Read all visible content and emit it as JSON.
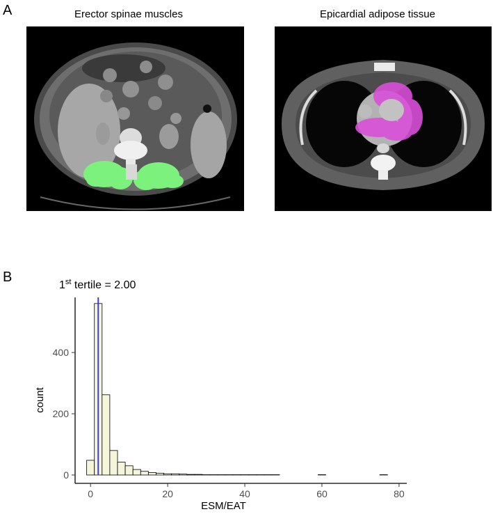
{
  "panel_a": {
    "letter": "A",
    "left_image_title": "Erector spinae muscles",
    "right_image_title": "Epicardial adipose tissue",
    "esm_highlight_color": "#7cf27c",
    "eat_highlight_color": "#d94fd9"
  },
  "panel_b": {
    "letter": "B"
  },
  "chart_data": {
    "type": "bar",
    "title": "",
    "xlabel": "ESM/EAT",
    "ylabel": "count",
    "xlim": [
      -4,
      82
    ],
    "ylim": [
      0,
      580
    ],
    "x_ticks": [
      0,
      20,
      40,
      60,
      80
    ],
    "y_ticks": [
      0,
      200,
      400
    ],
    "bin_width": 2,
    "bins_start": [
      -1,
      1,
      3,
      5,
      7,
      9,
      11,
      13,
      15,
      17,
      19,
      21,
      23,
      25,
      27,
      29,
      31,
      33,
      35,
      37,
      39,
      41,
      43,
      45,
      47,
      49,
      51,
      53,
      55,
      57,
      59,
      61,
      63,
      65,
      67,
      69,
      71,
      73,
      75,
      77
    ],
    "counts": [
      48,
      560,
      262,
      80,
      42,
      30,
      18,
      12,
      8,
      6,
      4,
      4,
      3,
      2,
      2,
      1,
      1,
      1,
      1,
      1,
      1,
      1,
      1,
      1,
      1,
      0,
      0,
      0,
      0,
      0,
      1,
      0,
      0,
      0,
      0,
      0,
      0,
      0,
      1,
      0
    ],
    "bar_fill": "#f5f5dc",
    "bar_stroke": "#000000",
    "reference_line": {
      "x": 2.0,
      "color": "#3b3bdb",
      "label_base": "1",
      "label_sup": "st",
      "label_rest": " tertile = 2.00"
    },
    "grid": false
  }
}
